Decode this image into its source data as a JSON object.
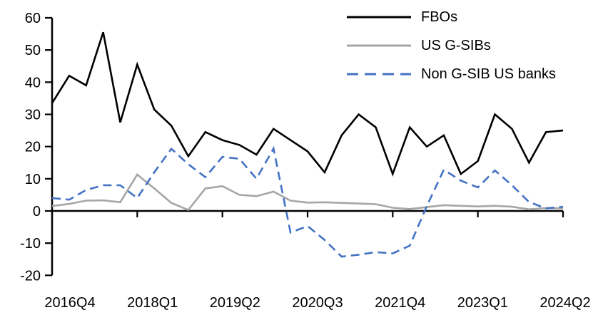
{
  "chart_data": {
    "type": "line",
    "title": "",
    "xlabel": "",
    "ylabel": "",
    "ylim": [
      -20,
      60
    ],
    "y_ticks": [
      60,
      50,
      40,
      30,
      20,
      10,
      0,
      -10,
      -20
    ],
    "x_tick_labels": [
      "2016Q4",
      "2018Q1",
      "2019Q2",
      "2020Q3",
      "2021Q4",
      "2023Q1",
      "2024Q2"
    ],
    "x_tick_step_quarters": 5,
    "grid": false,
    "legend_position": "top-right",
    "axis_color": "#000000",
    "categories": [
      "2016Q4",
      "2017Q1",
      "2017Q2",
      "2017Q3",
      "2017Q4",
      "2018Q1",
      "2018Q2",
      "2018Q3",
      "2018Q4",
      "2019Q1",
      "2019Q2",
      "2019Q3",
      "2019Q4",
      "2020Q1",
      "2020Q2",
      "2020Q3",
      "2020Q4",
      "2021Q1",
      "2021Q2",
      "2021Q3",
      "2021Q4",
      "2022Q1",
      "2022Q2",
      "2022Q3",
      "2022Q4",
      "2023Q1",
      "2023Q2",
      "2023Q3",
      "2023Q4",
      "2024Q1",
      "2024Q2"
    ],
    "series": [
      {
        "name": "FBOs",
        "color": "#000000",
        "style": "solid",
        "values": [
          33.5,
          42,
          39,
          55.5,
          27.5,
          45.5,
          31.5,
          26.5,
          17,
          24.5,
          22,
          20.5,
          17.5,
          25.5,
          22,
          18.5,
          12,
          23.5,
          30,
          26,
          11.5,
          26,
          20,
          23.5,
          11.5,
          15.5,
          30,
          25.5,
          15,
          24.5,
          25
        ]
      },
      {
        "name": "US G-SIBs",
        "color": "#a6a6a6",
        "style": "solid",
        "values": [
          1.5,
          2.2,
          3.2,
          3.3,
          2.7,
          11.3,
          7,
          2.5,
          0.3,
          7,
          7.7,
          5,
          4.6,
          6,
          3.2,
          2.6,
          2.7,
          2.5,
          2.3,
          2.1,
          1,
          0.6,
          1.2,
          1.8,
          1.6,
          1.4,
          1.6,
          1.3,
          0.5,
          0.9,
          0.8
        ]
      },
      {
        "name": "Non G-SIB US banks",
        "color": "#4472c4",
        "style": "dashed",
        "values": [
          4,
          3.5,
          6.5,
          8,
          8,
          4,
          12,
          19.3,
          14.5,
          10.5,
          16.8,
          16.2,
          10,
          19.4,
          -6.7,
          -4.7,
          -9,
          -14.2,
          -13.6,
          -12.8,
          -13.2,
          -10.8,
          1.5,
          12.8,
          9.4,
          7.3,
          12.6,
          8,
          2.8,
          0.8,
          1.3
        ]
      }
    ]
  }
}
